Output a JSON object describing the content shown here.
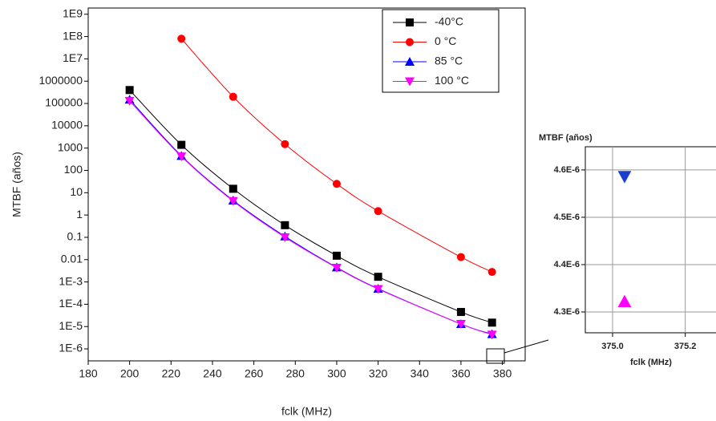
{
  "chart_data": [
    {
      "type": "line",
      "x_label": "fclk (MHz)",
      "y_label": "MTBF (años)",
      "xlim": [
        180,
        391
      ],
      "xticks": [
        180,
        200,
        220,
        240,
        260,
        280,
        300,
        320,
        340,
        360,
        380
      ],
      "ylim": [
        2.9e-07,
        1900000000.0
      ],
      "log_scale_y": true,
      "yticks": [
        {
          "value": 1e-06,
          "label": "1E-6"
        },
        {
          "value": 1e-05,
          "label": "1E-5"
        },
        {
          "value": 0.0001,
          "label": "1E-4"
        },
        {
          "value": 0.001,
          "label": "1E-3"
        },
        0.01,
        0.1,
        1,
        10,
        100,
        1000,
        10000,
        100000,
        1000000,
        {
          "value": 10000000.0,
          "label": "1E7"
        },
        {
          "value": 100000000.0,
          "label": "1E8"
        },
        {
          "value": 1000000000.0,
          "label": "1E9"
        }
      ],
      "legend": "top-right",
      "series": [
        {
          "name": "-40°C",
          "color": "#000000",
          "marker": "square",
          "x": [
            200,
            225,
            250,
            275,
            300,
            320,
            360,
            375
          ],
          "values": [
            400000,
            1400,
            15,
            0.35,
            0.015,
            0.0017,
            4.5e-05,
            1.5e-05
          ]
        },
        {
          "name": "0 °C",
          "color": "#ff0000",
          "marker": "circle",
          "x": [
            225,
            250,
            275,
            300,
            320,
            360,
            375
          ],
          "values": [
            80000000.0,
            200000,
            1500,
            25,
            1.5,
            0.013,
            0.0028
          ]
        },
        {
          "name": "85 °C",
          "color": "#0000ff",
          "marker": "triangle-up",
          "x": [
            200,
            225,
            250,
            275,
            300,
            320,
            360,
            375
          ],
          "values": [
            150000,
            450,
            4.5,
            0.11,
            0.0045,
            0.0005,
            1.3e-05,
            4.59e-06
          ]
        },
        {
          "name": "100 °C",
          "color": "#ff00ff",
          "marker": "triangle-down",
          "x": [
            200,
            225,
            250,
            275,
            300,
            320,
            360,
            375
          ],
          "values": [
            130000,
            420,
            4.2,
            0.1,
            0.0043,
            0.00048,
            1.3e-05,
            4.32e-06
          ]
        }
      ]
    },
    {
      "type": "scatter",
      "x_label": "fclk (MHz)",
      "y_label": "MTBF (años)",
      "xlim": [
        374.925,
        375.3
      ],
      "xticks": [
        {
          "value": 375.0,
          "label": "375.0"
        },
        {
          "value": 375.2,
          "label": "375.2"
        }
      ],
      "ylim": [
        4.256e-06,
        4.649e-06
      ],
      "yticks": [
        {
          "value": 4.3e-06,
          "label": "4.3E-6"
        },
        {
          "value": 4.4e-06,
          "label": "4.4E-6"
        },
        {
          "value": 4.5e-06,
          "label": "4.5E-6"
        },
        {
          "value": 4.6e-06,
          "label": "4.6E-6"
        }
      ],
      "grid": true,
      "series": [
        {
          "color": "#1a3fd0",
          "marker": "triangle-down",
          "x": [
            375.033
          ],
          "values": [
            4.586e-06
          ]
        },
        {
          "color": "#ff00ff",
          "marker": "triangle-up",
          "x": [
            375.033
          ],
          "values": [
            4.322e-06
          ]
        }
      ]
    }
  ]
}
